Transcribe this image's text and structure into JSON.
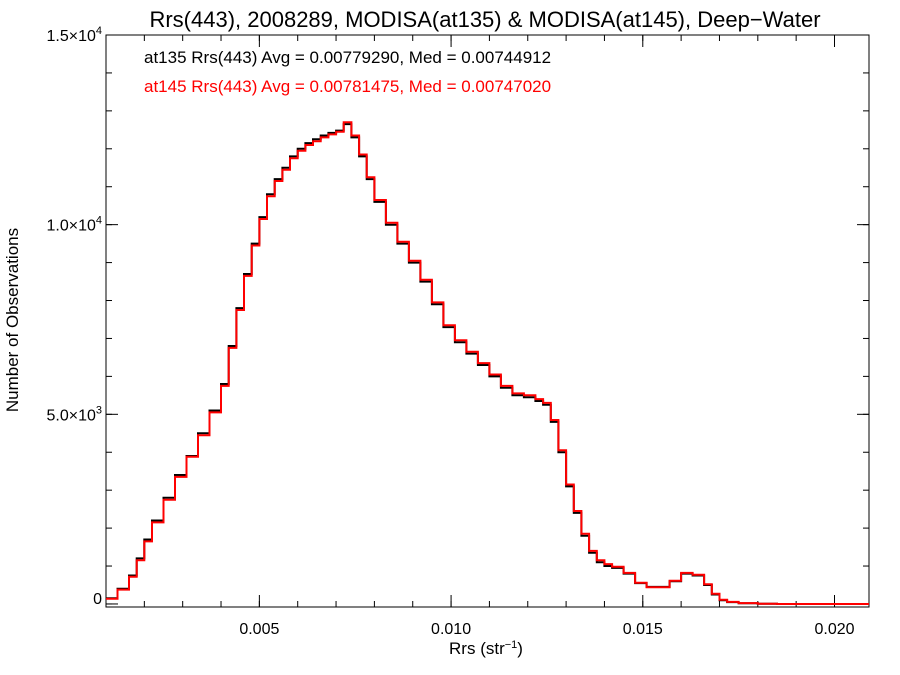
{
  "chart_data": {
    "type": "line",
    "title": "Rrs(443), 2008289, MODISA(at135) & MODISA(at145), Deep−Water",
    "xlabel_main": "Rrs (str",
    "xlabel_exp": "−1",
    "xlabel_close": ")",
    "ylabel": "Number of Observations",
    "xlim": [
      0.001,
      0.0209
    ],
    "ylim": [
      -80,
      15000
    ],
    "x_ticks": [
      {
        "value": 0.005,
        "label": "0.005"
      },
      {
        "value": 0.01,
        "label": "0.010"
      },
      {
        "value": 0.015,
        "label": "0.015"
      },
      {
        "value": 0.02,
        "label": "0.020"
      }
    ],
    "y_ticks": [
      {
        "value": 0,
        "mant": "0",
        "exp": ""
      },
      {
        "value": 5000,
        "mant": "5.0×10",
        "exp": "3"
      },
      {
        "value": 10000,
        "mant": "1.0×10",
        "exp": "4"
      },
      {
        "value": 15000,
        "mant": "1.5×10",
        "exp": "4"
      }
    ],
    "x_minor_step": 0.001,
    "y_minor_step": 1000,
    "annotations": [
      {
        "text": "at135 Rrs(443) Avg = 0.00779290, Med = 0.00744912",
        "color": "#000000"
      },
      {
        "text": "at145 Rrs(443) Avg = 0.00781475, Med = 0.00747020",
        "color": "#ff0000"
      }
    ],
    "series": [
      {
        "color": "#000000",
        "x": [
          0.001,
          0.0013,
          0.0016,
          0.0018,
          0.002,
          0.0022,
          0.0025,
          0.0028,
          0.0031,
          0.0034,
          0.0037,
          0.004,
          0.0042,
          0.0044,
          0.0046,
          0.0048,
          0.005,
          0.0052,
          0.0054,
          0.0056,
          0.0058,
          0.006,
          0.0062,
          0.0064,
          0.0066,
          0.0068,
          0.007,
          0.0072,
          0.0074,
          0.0076,
          0.0078,
          0.008,
          0.0083,
          0.0086,
          0.0089,
          0.0092,
          0.0095,
          0.0098,
          0.0101,
          0.0104,
          0.0107,
          0.011,
          0.0113,
          0.0116,
          0.0119,
          0.0122,
          0.0124,
          0.0126,
          0.0128,
          0.013,
          0.0132,
          0.0134,
          0.0136,
          0.0138,
          0.014,
          0.0142,
          0.0145,
          0.0148,
          0.0151,
          0.0154,
          0.0157,
          0.016,
          0.0163,
          0.0166,
          0.0168,
          0.017,
          0.0172,
          0.0175,
          0.018,
          0.0185,
          0.019,
          0.0195,
          0.02,
          0.0209
        ],
        "y": [
          150,
          400,
          750,
          1200,
          1700,
          2200,
          2800,
          3400,
          3900,
          4500,
          5100,
          5800,
          6800,
          7800,
          8700,
          9500,
          10200,
          10800,
          11200,
          11500,
          11800,
          12000,
          12150,
          12250,
          12350,
          12420,
          12480,
          12650,
          12300,
          11800,
          11200,
          10600,
          10000,
          9500,
          9000,
          8500,
          7900,
          7300,
          6900,
          6600,
          6300,
          6000,
          5700,
          5500,
          5450,
          5350,
          5250,
          4800,
          4000,
          3100,
          2400,
          1800,
          1350,
          1100,
          1000,
          950,
          800,
          550,
          450,
          450,
          600,
          800,
          750,
          500,
          250,
          100,
          50,
          20,
          5,
          0,
          0,
          0,
          0,
          0
        ]
      },
      {
        "color": "#ff0000",
        "x": [
          0.001,
          0.0013,
          0.0016,
          0.0018,
          0.002,
          0.0022,
          0.0025,
          0.0028,
          0.0031,
          0.0034,
          0.0037,
          0.004,
          0.0042,
          0.0044,
          0.0046,
          0.0048,
          0.005,
          0.0052,
          0.0054,
          0.0056,
          0.0058,
          0.006,
          0.0062,
          0.0064,
          0.0066,
          0.0068,
          0.007,
          0.0072,
          0.0074,
          0.0076,
          0.0078,
          0.008,
          0.0083,
          0.0086,
          0.0089,
          0.0092,
          0.0095,
          0.0098,
          0.0101,
          0.0104,
          0.0107,
          0.011,
          0.0113,
          0.0116,
          0.0119,
          0.0122,
          0.0124,
          0.0126,
          0.0128,
          0.013,
          0.0132,
          0.0134,
          0.0136,
          0.0138,
          0.014,
          0.0142,
          0.0145,
          0.0148,
          0.0151,
          0.0154,
          0.0157,
          0.016,
          0.0163,
          0.0166,
          0.0168,
          0.017,
          0.0172,
          0.0175,
          0.018,
          0.0185,
          0.019,
          0.0195,
          0.02,
          0.0209
        ],
        "y": [
          140,
          380,
          720,
          1150,
          1650,
          2150,
          2750,
          3350,
          3880,
          4450,
          5050,
          5750,
          6750,
          7750,
          8650,
          9450,
          10150,
          10750,
          11150,
          11450,
          11750,
          11950,
          12100,
          12200,
          12300,
          12380,
          12450,
          12700,
          12350,
          11850,
          11250,
          10650,
          10050,
          9550,
          9050,
          8550,
          7950,
          7350,
          6950,
          6650,
          6350,
          6050,
          5750,
          5550,
          5500,
          5400,
          5300,
          4850,
          4050,
          3150,
          2450,
          1850,
          1400,
          1150,
          1050,
          980,
          820,
          560,
          440,
          440,
          610,
          820,
          770,
          520,
          270,
          110,
          55,
          22,
          6,
          0,
          0,
          0,
          0,
          0
        ]
      }
    ]
  }
}
